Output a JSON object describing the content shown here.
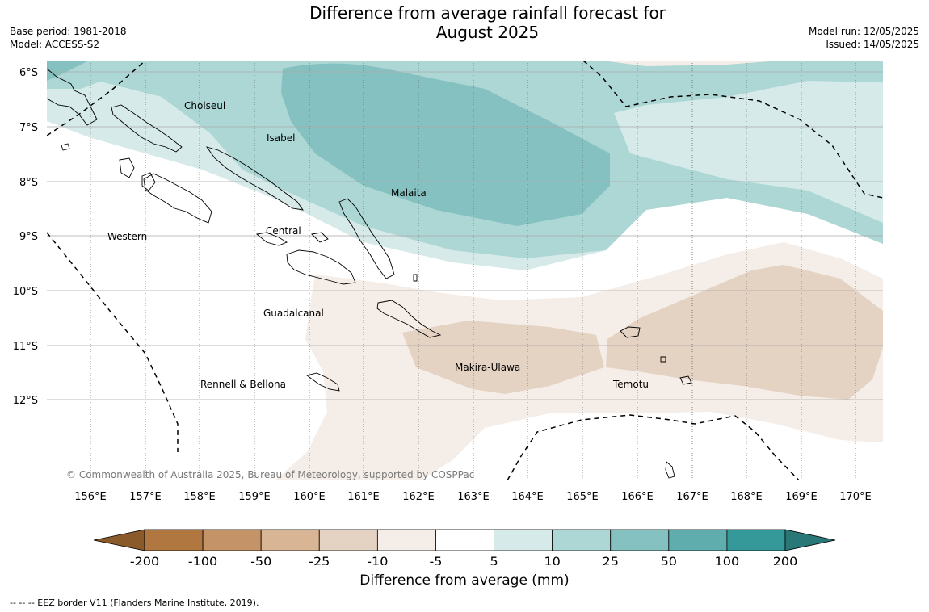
{
  "title_line1": "Difference from average rainfall forecast for",
  "title_line2": "August 2025",
  "base_period": "Base period: 1981-2018",
  "model": "Model: ACCESS-S2",
  "model_run": "Model run: 12/05/2025",
  "issued": "Issued: 14/05/2025",
  "copyright": "© Commonwealth of Australia 2025, Bureau of Meteorology, supported by COSPPac",
  "lat_labels": [
    "6°S",
    "7°S",
    "8°S",
    "9°S",
    "10°S",
    "11°S",
    "12°S"
  ],
  "lon_labels": [
    "156°E",
    "157°E",
    "158°E",
    "159°E",
    "160°E",
    "161°E",
    "162°E",
    "163°E",
    "164°E",
    "165°E",
    "166°E",
    "167°E",
    "168°E",
    "169°E",
    "170°E"
  ],
  "province_labels": [
    "Choiseul",
    "Isabel",
    "Malaita",
    "Western",
    "Central",
    "Guadalcanal",
    "Makira-Ulawa",
    "Rennell & Bellona",
    "Temotu"
  ],
  "colorbar": {
    "title": "Difference from average (mm)",
    "ticks": [
      "-200",
      "-100",
      "-50",
      "-25",
      "-10",
      "-5",
      "5",
      "10",
      "25",
      "50",
      "100",
      "200"
    ],
    "colors": [
      "#8b5a2b",
      "#b07840",
      "#c49468",
      "#d8b594",
      "#e4d2c2",
      "#f5ede7",
      "#ffffff",
      "#d6eae9",
      "#add7d5",
      "#84c1c0",
      "#5fadac",
      "#35999a",
      "#2a7778"
    ]
  },
  "footer": "--  --  -- EEZ border V11 (Flanders Marine Institute, 2019)."
}
